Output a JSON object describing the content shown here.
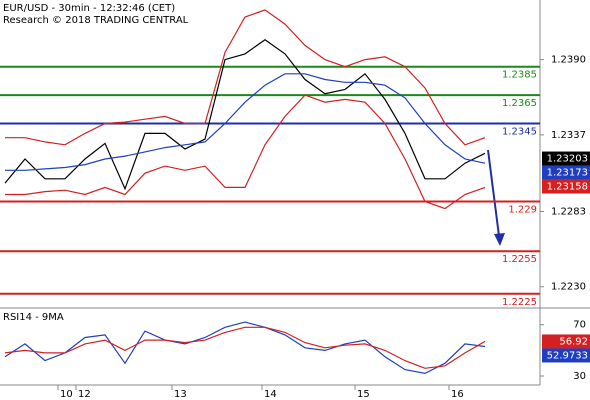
{
  "chart_data": [
    {
      "type": "line",
      "title": "EUR/USD - 30min - 12:32:46 (CET)",
      "subtitle": "Research © 2018 TRADING CENTRAL",
      "x": [
        1,
        5,
        9,
        13,
        17,
        21,
        25,
        29,
        33,
        37,
        41,
        45,
        49,
        53,
        57,
        61,
        65,
        69,
        73,
        77,
        81,
        85,
        89,
        93,
        97
      ],
      "xlim": [
        0,
        108
      ],
      "ylim": [
        1.2215,
        1.2432
      ],
      "yticks": [
        {
          "value": 1.239,
          "label": "1.2390"
        },
        1.2337,
        1.2283,
        {
          "value": 1.223,
          "label": "1.2230"
        }
      ],
      "series": [
        {
          "color": "#000000",
          "values": [
            1.2303,
            1.232,
            1.2306,
            1.2306,
            1.232,
            1.2331,
            1.2299,
            1.2338,
            1.2338,
            1.2327,
            1.2334,
            1.239,
            1.2394,
            1.2404,
            1.2394,
            1.2376,
            1.2366,
            1.2369,
            1.238,
            1.2362,
            1.2338,
            1.2306,
            1.2306,
            1.2317,
            1.2324
          ]
        },
        {
          "color": "#1f3fbf",
          "values": [
            1.2312,
            1.2312,
            1.2313,
            1.2314,
            1.2316,
            1.232,
            1.2322,
            1.2325,
            1.2328,
            1.233,
            1.2332,
            1.2345,
            1.236,
            1.2372,
            1.238,
            1.238,
            1.2376,
            1.2374,
            1.2374,
            1.2372,
            1.2363,
            1.2345,
            1.233,
            1.232,
            1.2317
          ]
        },
        {
          "color": "#d42020",
          "values": [
            1.2335,
            1.2335,
            1.2332,
            1.233,
            1.2338,
            1.2345,
            1.2346,
            1.2348,
            1.235,
            1.2345,
            1.2345,
            1.2395,
            1.242,
            1.2425,
            1.2415,
            1.24,
            1.239,
            1.2385,
            1.239,
            1.2392,
            1.2385,
            1.237,
            1.2345,
            1.233,
            1.2335
          ]
        },
        {
          "color": "#d42020",
          "values": [
            1.2295,
            1.2295,
            1.2297,
            1.2298,
            1.2295,
            1.23,
            1.2295,
            1.231,
            1.2315,
            1.2312,
            1.2315,
            1.23,
            1.23,
            1.233,
            1.235,
            1.2365,
            1.236,
            1.2362,
            1.236,
            1.2345,
            1.232,
            1.229,
            1.2285,
            1.2295,
            1.23
          ]
        }
      ],
      "levels": [
        {
          "value": 1.2385,
          "color": "#1a8a1a"
        },
        {
          "value": 1.2365,
          "color": "#1a8a1a"
        },
        {
          "value": 1.2345,
          "color": "#1f2fa8"
        },
        {
          "value": 1.229,
          "color": "#d42020"
        },
        {
          "value": 1.2255,
          "color": "#d42020"
        },
        {
          "value": 1.2225,
          "color": "#d42020"
        }
      ],
      "markers": [
        {
          "value": 1.23203,
          "color": "#000000"
        },
        {
          "value": 1.23173,
          "color": "#1f3fbf"
        },
        {
          "value": 1.23158,
          "color": "#d42020"
        }
      ]
    },
    {
      "type": "line",
      "title": "RSI14 - 9MA",
      "x": [
        1,
        5,
        9,
        13,
        17,
        21,
        25,
        29,
        33,
        37,
        41,
        45,
        49,
        53,
        57,
        61,
        65,
        69,
        73,
        77,
        81,
        85,
        89,
        93,
        97
      ],
      "xlim": [
        0,
        108
      ],
      "xticks": [
        {
          "value": 11.6,
          "label": "10"
        },
        {
          "value": 15.2,
          "label": "12"
        },
        {
          "value": 34.4,
          "label": "13"
        },
        {
          "value": 52.4,
          "label": "14"
        },
        {
          "value": 71,
          "label": "15"
        },
        {
          "value": 89.8,
          "label": "16"
        }
      ],
      "ylim": [
        23,
        83
      ],
      "yticks": [
        70,
        30
      ],
      "series": [
        {
          "color": "#1f3fbf",
          "values": [
            45,
            55,
            42,
            48,
            60,
            62,
            40,
            65,
            58,
            55,
            60,
            68,
            72,
            68,
            62,
            52,
            50,
            55,
            58,
            45,
            35,
            32,
            40,
            55,
            53
          ]
        },
        {
          "color": "#d42020",
          "values": [
            48,
            50,
            48,
            48,
            55,
            58,
            50,
            58,
            58,
            56,
            58,
            64,
            68,
            68,
            64,
            56,
            52,
            54,
            55,
            50,
            42,
            36,
            38,
            48,
            57
          ]
        }
      ],
      "markers": [
        {
          "value": 56.92,
          "color": "#d42020"
        },
        {
          "value": 52.9733,
          "color": "#1f3fbf"
        }
      ]
    }
  ]
}
